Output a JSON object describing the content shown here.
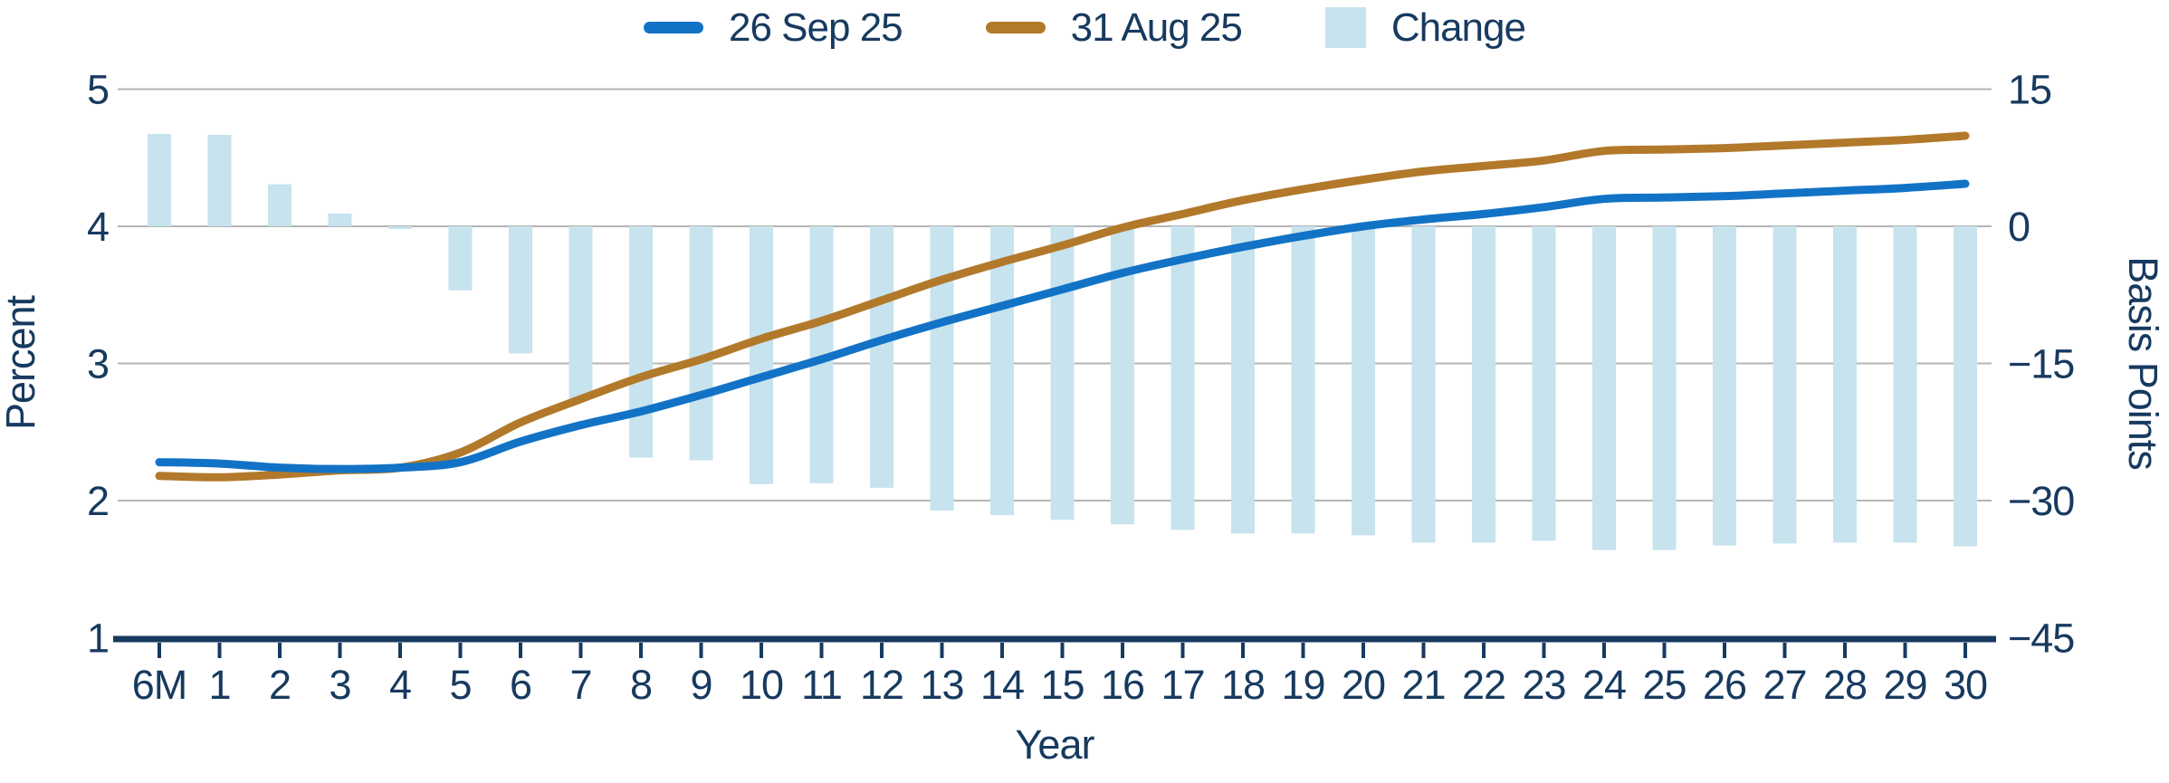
{
  "chart_data": {
    "type": "line",
    "title": "",
    "x": [
      "6M",
      "1",
      "2",
      "3",
      "4",
      "5",
      "6",
      "7",
      "8",
      "9",
      "10",
      "11",
      "12",
      "13",
      "14",
      "15",
      "16",
      "17",
      "18",
      "19",
      "20",
      "21",
      "22",
      "23",
      "24",
      "25",
      "26",
      "27",
      "28",
      "29",
      "30"
    ],
    "xlabel": "Year",
    "left_axis": {
      "label": "Percent",
      "ticks": [
        5,
        4,
        3,
        2,
        1
      ],
      "tick_labels": [
        "5",
        "4",
        "3",
        "2",
        "1"
      ],
      "range": [
        1,
        5
      ]
    },
    "right_axis": {
      "label": "Basis Points",
      "ticks": [
        15,
        0,
        -15,
        -30,
        -45
      ],
      "tick_labels": [
        "15",
        "0",
        "−15",
        "−30",
        "−45"
      ],
      "range": [
        -45,
        15
      ]
    },
    "grid": true,
    "legend_position": "top",
    "series": [
      {
        "name": "26 Sep 25",
        "type": "line",
        "axis": "left",
        "color": "#1273c6",
        "values": [
          2.28,
          2.27,
          2.24,
          2.23,
          2.24,
          2.28,
          2.43,
          2.55,
          2.65,
          2.77,
          2.9,
          3.03,
          3.17,
          3.3,
          3.42,
          3.54,
          3.66,
          3.76,
          3.85,
          3.93,
          4.0,
          4.05,
          4.09,
          4.14,
          4.2,
          4.21,
          4.22,
          4.24,
          4.26,
          4.28,
          4.31
        ]
      },
      {
        "name": "31 Aug 25",
        "type": "line",
        "axis": "left",
        "color": "#b2792b",
        "values": [
          2.18,
          2.17,
          2.19,
          2.22,
          2.24,
          2.35,
          2.57,
          2.74,
          2.9,
          3.03,
          3.18,
          3.31,
          3.46,
          3.61,
          3.74,
          3.86,
          3.99,
          4.09,
          4.19,
          4.27,
          4.34,
          4.4,
          4.44,
          4.48,
          4.55,
          4.56,
          4.57,
          4.59,
          4.61,
          4.63,
          4.66
        ]
      },
      {
        "name": "Change",
        "type": "bar",
        "axis": "right",
        "color": "#c6e3ee",
        "values": [
          10.1,
          10.0,
          4.6,
          1.4,
          -0.3,
          -7.0,
          -13.9,
          -18.9,
          -25.3,
          -25.6,
          -28.2,
          -28.1,
          -28.6,
          -31.1,
          -31.6,
          -32.1,
          -32.6,
          -33.2,
          -33.6,
          -33.6,
          -33.8,
          -34.6,
          -34.6,
          -34.4,
          -35.4,
          -35.4,
          -34.9,
          -34.7,
          -34.6,
          -34.6,
          -35.0
        ]
      }
    ]
  },
  "style": {
    "text_color": "#173a5f",
    "grid_color": "#b5b5b5",
    "axis_color": "#173a5f",
    "background": "#ffffff"
  }
}
